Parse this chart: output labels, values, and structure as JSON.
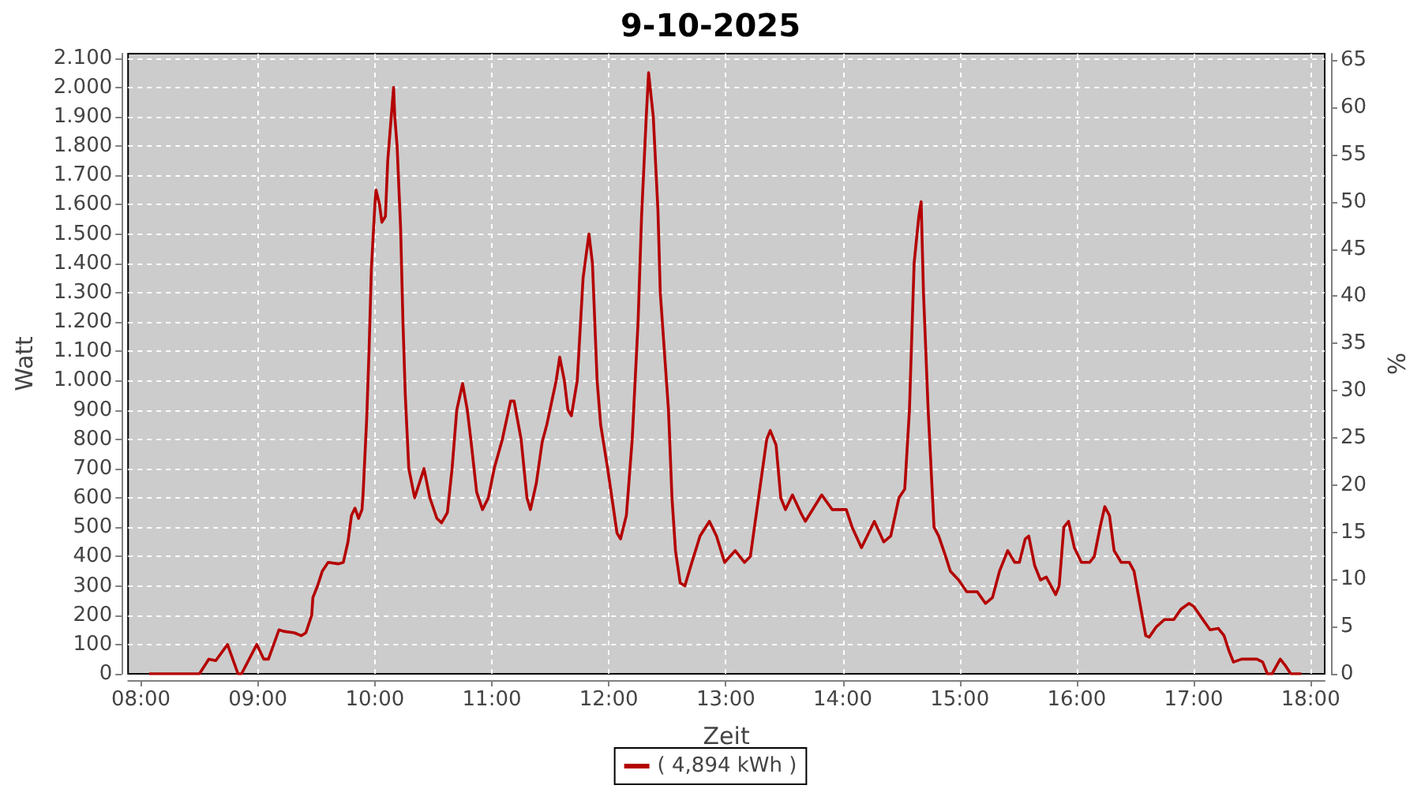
{
  "chart_data": {
    "type": "line",
    "title": "9-10-2025",
    "xlabel": "Zeit",
    "ylabel": "Watt",
    "y2label": "%",
    "xlim": [
      7.89,
      18.12
    ],
    "xticks": [
      {
        "value": 8,
        "label": "08:00"
      },
      {
        "value": 9,
        "label": "09:00"
      },
      {
        "value": 10,
        "label": "10:00"
      },
      {
        "value": 11,
        "label": "11:00"
      },
      {
        "value": 12,
        "label": "12:00"
      },
      {
        "value": 13,
        "label": "13:00"
      },
      {
        "value": 14,
        "label": "14:00"
      },
      {
        "value": 15,
        "label": "15:00"
      },
      {
        "value": 16,
        "label": "16:00"
      },
      {
        "value": 17,
        "label": "17:00"
      },
      {
        "value": 18,
        "label": "18:00"
      }
    ],
    "ylim": [
      0,
      2115
    ],
    "yticks": [
      0,
      100,
      200,
      300,
      400,
      500,
      600,
      700,
      800,
      900,
      {
        "value": 1000,
        "label": "1.000"
      },
      {
        "value": 1100,
        "label": "1.100"
      },
      {
        "value": 1200,
        "label": "1.200"
      },
      {
        "value": 1300,
        "label": "1.300"
      },
      {
        "value": 1400,
        "label": "1.400"
      },
      {
        "value": 1500,
        "label": "1.500"
      },
      {
        "value": 1600,
        "label": "1.600"
      },
      {
        "value": 1700,
        "label": "1.700"
      },
      {
        "value": 1800,
        "label": "1.800"
      },
      {
        "value": 1900,
        "label": "1.900"
      },
      {
        "value": 2000,
        "label": "2.000"
      },
      {
        "value": 2100,
        "label": "2.100"
      }
    ],
    "y2lim": [
      0,
      65.7
    ],
    "y2ticks": [
      0,
      5,
      10,
      15,
      20,
      25,
      30,
      35,
      40,
      45,
      50,
      55,
      60,
      65
    ],
    "grid": true,
    "legend": "bottom",
    "marker": "none",
    "x": [
      8.07,
      8.5,
      8.58,
      8.64,
      8.74,
      8.83,
      8.86,
      8.99,
      9.05,
      9.09,
      9.18,
      9.22,
      9.31,
      9.37,
      9.41,
      9.46,
      9.47,
      9.51,
      9.55,
      9.6,
      9.69,
      9.73,
      9.77,
      9.8,
      9.83,
      9.86,
      9.89,
      9.9,
      9.93,
      9.95,
      9.97,
      10.0,
      10.01,
      10.04,
      10.06,
      10.09,
      10.11,
      10.13,
      10.16,
      10.17,
      10.19,
      10.22,
      10.24,
      10.26,
      10.29,
      10.34,
      10.42,
      10.47,
      10.53,
      10.57,
      10.62,
      10.66,
      10.7,
      10.75,
      10.79,
      10.82,
      10.87,
      10.92,
      10.97,
      11.02,
      11.09,
      11.16,
      11.19,
      11.25,
      11.3,
      11.33,
      11.38,
      11.43,
      11.47,
      11.55,
      11.58,
      11.62,
      11.65,
      11.68,
      11.73,
      11.78,
      11.83,
      11.86,
      11.9,
      11.93,
      11.99,
      12.07,
      12.1,
      12.15,
      12.2,
      12.25,
      12.28,
      12.32,
      12.34,
      12.38,
      12.42,
      12.44,
      12.51,
      12.54,
      12.57,
      12.61,
      12.65,
      12.71,
      12.78,
      12.86,
      12.92,
      12.99,
      13.08,
      13.16,
      13.21,
      13.28,
      13.35,
      13.38,
      13.43,
      13.47,
      13.51,
      13.57,
      13.64,
      13.68,
      13.82,
      13.91,
      14.03,
      14.08,
      14.16,
      14.27,
      14.35,
      14.41,
      14.48,
      14.53,
      14.57,
      14.61,
      14.65,
      14.67,
      14.69,
      14.73,
      14.78,
      14.82,
      14.88,
      14.92,
      14.99,
      15.06,
      15.15,
      15.22,
      15.28,
      15.34,
      15.41,
      15.47,
      15.51,
      15.56,
      15.59,
      15.64,
      15.69,
      15.74,
      15.82,
      15.85,
      15.89,
      15.93,
      15.98,
      16.04,
      16.11,
      16.15,
      16.2,
      16.24,
      16.28,
      16.32,
      16.38,
      16.45,
      16.49,
      16.54,
      16.59,
      16.62,
      16.68,
      16.75,
      16.83,
      16.89,
      16.96,
      17.0,
      17.07,
      17.14,
      17.21,
      17.26,
      17.3,
      17.34,
      17.41,
      17.54,
      17.59,
      17.63,
      17.67,
      17.74,
      17.78,
      17.83,
      17.92
    ],
    "series": [
      {
        "name": "( 4,894 kWh )",
        "color": "#b40000",
        "values": [
          0,
          0,
          50,
          45,
          100,
          0,
          0,
          100,
          50,
          50,
          150,
          145,
          140,
          130,
          140,
          200,
          260,
          300,
          350,
          380,
          375,
          380,
          450,
          540,
          565,
          530,
          560,
          620,
          870,
          1100,
          1380,
          1600,
          1650,
          1600,
          1540,
          1560,
          1750,
          1850,
          2000,
          1900,
          1800,
          1520,
          1200,
          950,
          700,
          600,
          700,
          600,
          530,
          515,
          550,
          700,
          900,
          990,
          900,
          800,
          620,
          560,
          600,
          700,
          800,
          930,
          930,
          800,
          600,
          560,
          650,
          790,
          850,
          1000,
          1080,
          1000,
          900,
          880,
          1000,
          1350,
          1500,
          1400,
          1000,
          850,
          700,
          480,
          460,
          540,
          800,
          1200,
          1560,
          1900,
          2050,
          1900,
          1580,
          1300,
          900,
          600,
          420,
          310,
          300,
          380,
          470,
          520,
          470,
          380,
          420,
          380,
          400,
          600,
          800,
          830,
          780,
          600,
          560,
          610,
          550,
          520,
          610,
          560,
          560,
          500,
          430,
          520,
          450,
          470,
          600,
          630,
          900,
          1400,
          1560,
          1610,
          1300,
          900,
          500,
          470,
          400,
          350,
          320,
          280,
          280,
          240,
          260,
          350,
          420,
          380,
          380,
          460,
          470,
          370,
          320,
          330,
          270,
          300,
          500,
          520,
          430,
          380,
          380,
          400,
          500,
          570,
          540,
          420,
          380,
          380,
          350,
          240,
          130,
          125,
          160,
          185,
          185,
          220,
          240,
          230,
          190,
          150,
          155,
          130,
          80,
          40,
          50,
          50,
          40,
          0,
          0,
          50,
          30,
          0,
          0
        ]
      }
    ]
  }
}
